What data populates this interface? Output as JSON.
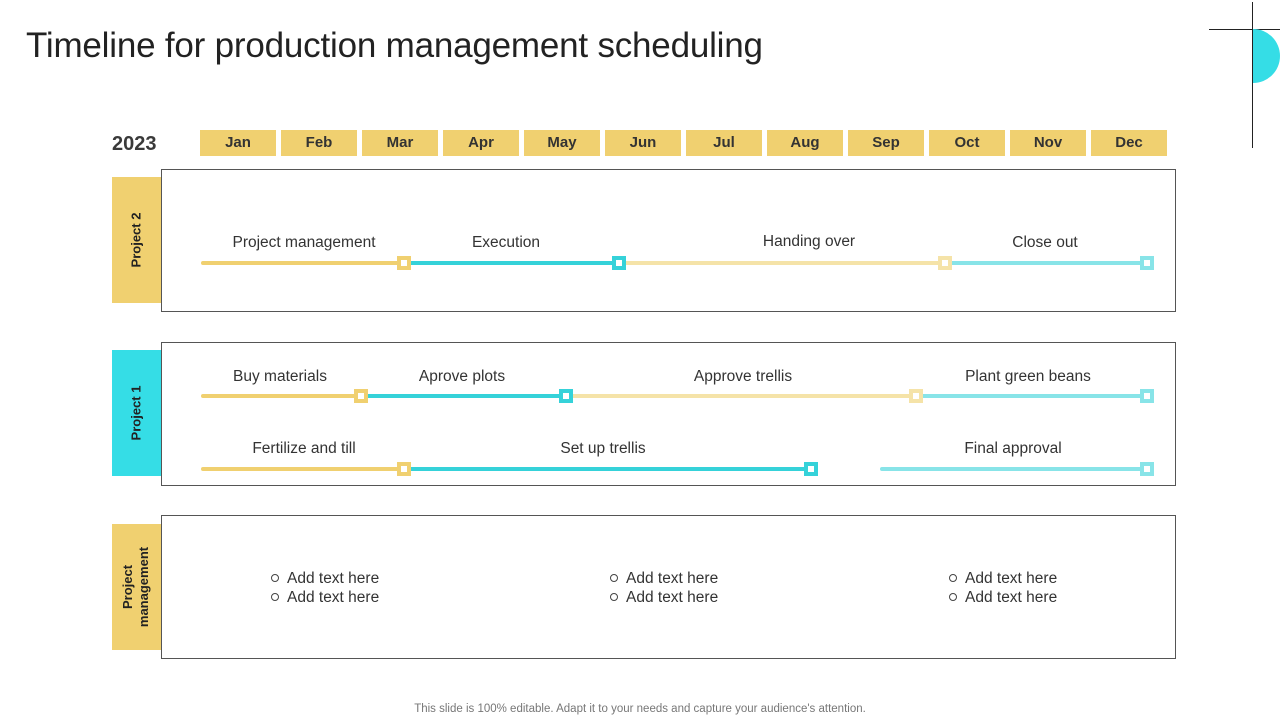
{
  "title": "Timeline for production management scheduling",
  "year": "2023",
  "months": [
    "Jan",
    "Feb",
    "Mar",
    "Apr",
    "May",
    "Jun",
    "Jul",
    "Aug",
    "Sep",
    "Oct",
    "Nov",
    "Dec"
  ],
  "colors": {
    "yellow": "#f0d070",
    "yellow_light": "#f5e3a8",
    "cyan": "#35d2d9",
    "cyan_light": "#88e4e8",
    "teal_accent": "#35dde6"
  },
  "rows": {
    "project2": {
      "label": "Project 2",
      "tasks": [
        "Project management",
        "Execution",
        "Handing over",
        "Close out"
      ]
    },
    "project1": {
      "label": "Project 1",
      "tasks_line1": [
        "Buy materials",
        "Aprove plots",
        "Approve trellis",
        "Plant green beans"
      ],
      "tasks_line2": [
        "Fertilize and till",
        "Set up trellis",
        "Final approval"
      ]
    },
    "project_management": {
      "label_line1": "Project",
      "label_line2": "management",
      "bullets": [
        "Add text here",
        "Add text here",
        "Add text here",
        "Add text here",
        "Add text here",
        "Add text here"
      ]
    }
  },
  "footer": "This slide is 100% editable. Adapt it to your needs and capture your audience's attention."
}
